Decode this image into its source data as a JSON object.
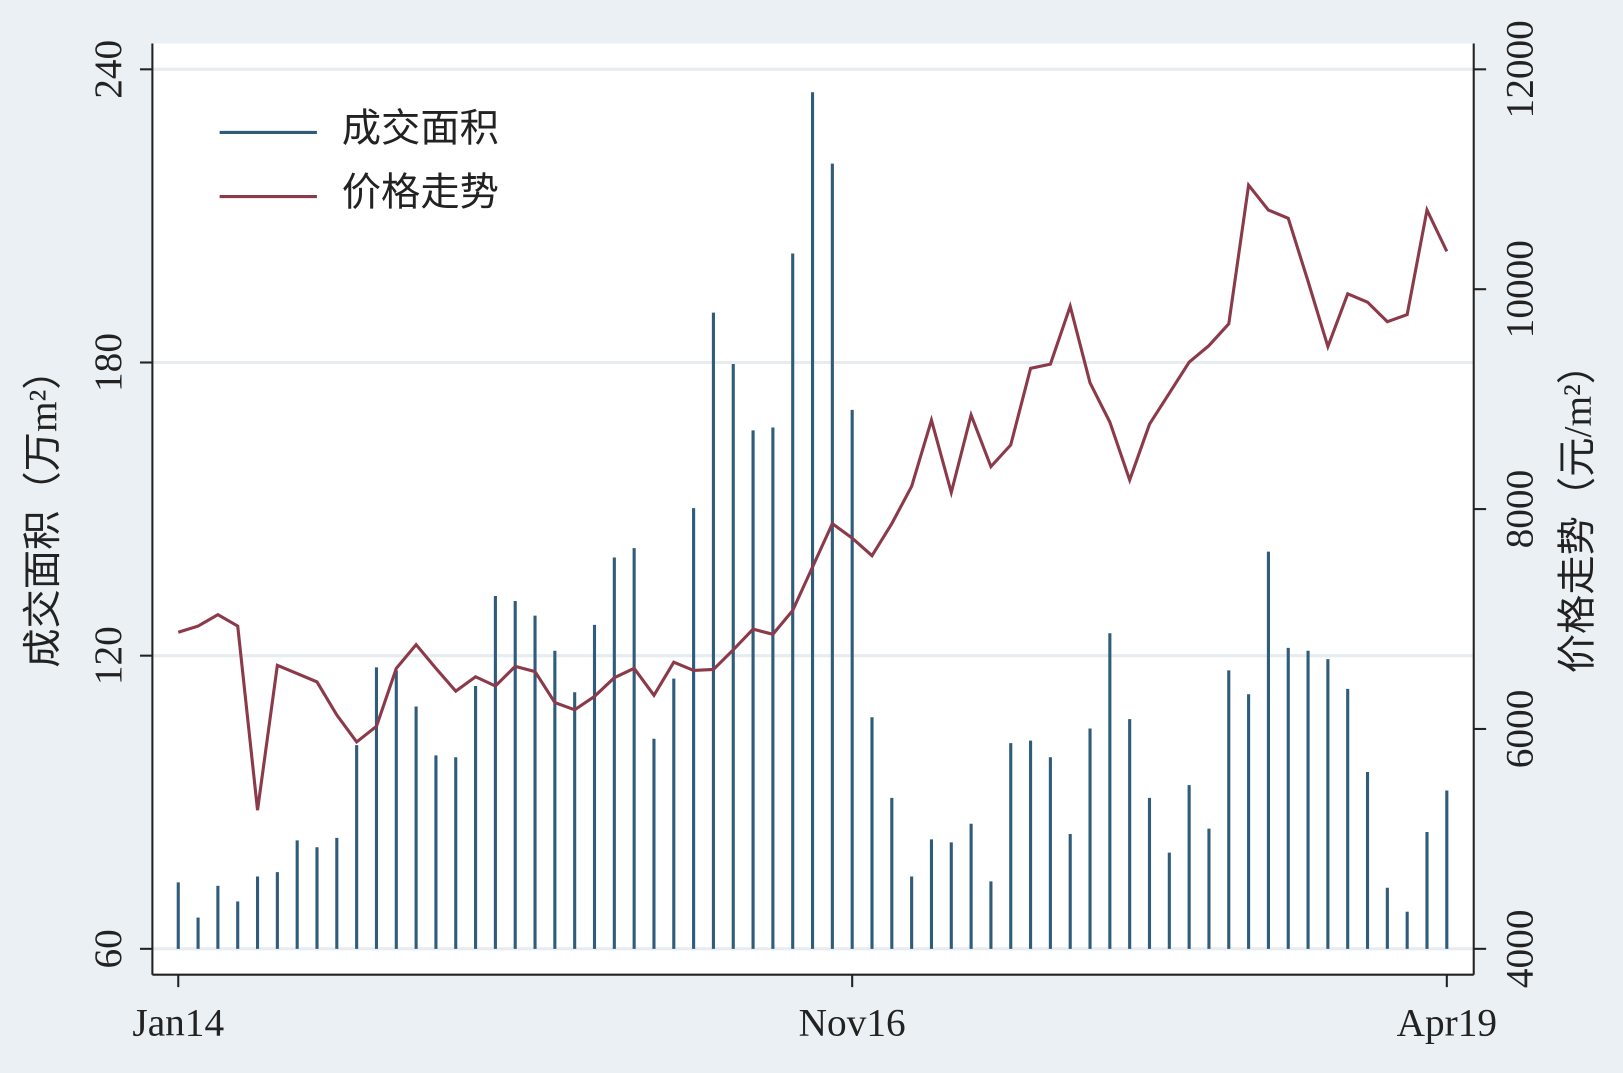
{
  "chart_data": {
    "type": "bar_line",
    "y_label": "成交面积（万m²）",
    "y2_label": "价格走势（元/m²）",
    "categories": [
      "Jan14",
      null,
      null,
      null,
      null,
      null,
      null,
      null,
      null,
      null,
      null,
      null,
      null,
      null,
      null,
      null,
      null,
      null,
      null,
      null,
      null,
      null,
      null,
      null,
      null,
      null,
      null,
      null,
      null,
      null,
      null,
      null,
      null,
      null,
      "Nov16",
      null,
      null,
      null,
      null,
      null,
      null,
      null,
      null,
      null,
      null,
      null,
      null,
      null,
      null,
      null,
      null,
      null,
      null,
      null,
      null,
      null,
      null,
      null,
      null,
      null,
      null,
      null,
      null,
      null,
      "Apr19"
    ],
    "series": [
      {
        "name": "成交面积",
        "color": "#2e5c7a",
        "axis": "y",
        "values": [
          73.6,
          66.4,
          72.9,
          69.7,
          74.8,
          75.7,
          82.2,
          80.8,
          82.7,
          101.7,
          117.6,
          117.0,
          109.6,
          99.6,
          99.2,
          113.8,
          132.2,
          131.2,
          128.2,
          121.0,
          112.5,
          126.3,
          140.1,
          142.0,
          103.0,
          115.3,
          150.2,
          190.2,
          179.7,
          166.1,
          166.7,
          202.3,
          235.3,
          220.7,
          170.3,
          107.4,
          90.9,
          74.8,
          82.4,
          81.8,
          85.6,
          73.8,
          102.1,
          102.6,
          99.2,
          83.5,
          105.1,
          124.6,
          107.0,
          90.9,
          79.7,
          93.5,
          84.6,
          117.0,
          112.1,
          141.3,
          121.6,
          121.0,
          119.3,
          113.2,
          96.2,
          72.5,
          67.6,
          83.9,
          92.4
        ]
      },
      {
        "name": "价格走势",
        "color": "#8b3a4a",
        "axis": "y2",
        "values": [
          6880,
          6936,
          7040,
          6936,
          5261,
          6579,
          6504,
          6428,
          6127,
          5882,
          6024,
          6551,
          6767,
          6551,
          6344,
          6475,
          6391,
          6569,
          6522,
          6240,
          6174,
          6296,
          6466,
          6551,
          6306,
          6607,
          6532,
          6541,
          6720,
          6908,
          6861,
          7078,
          7473,
          7868,
          7736,
          7576,
          7868,
          8207,
          8809,
          8151,
          8856,
          8386,
          8584,
          9280,
          9318,
          9845,
          9148,
          8791,
          8264,
          8772,
          9054,
          9336,
          9487,
          9685,
          10946,
          10720,
          10645,
          10071,
          9478,
          9958,
          9882,
          9704,
          9769,
          10720,
          10344
        ]
      }
    ],
    "ylim": [
      60,
      240
    ],
    "yticks": [
      60,
      120,
      180,
      240
    ],
    "y2lim": [
      4000,
      12000
    ],
    "y2ticks": [
      4000,
      6000,
      8000,
      10000,
      12000
    ],
    "grid": true,
    "legend": "upper-left"
  }
}
